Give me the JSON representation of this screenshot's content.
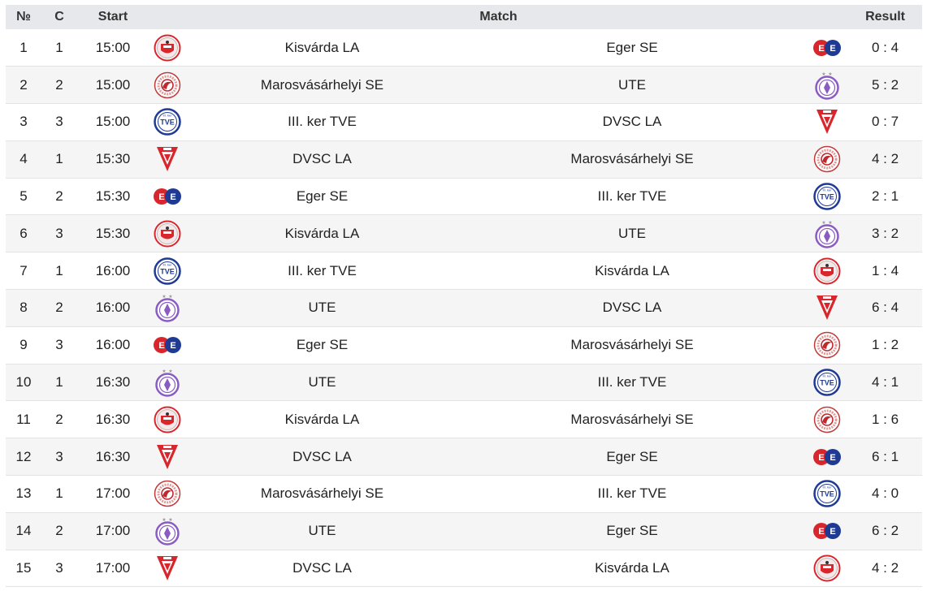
{
  "header": {
    "no": "№",
    "c": "C",
    "start": "Start",
    "match": "Match",
    "result": "Result"
  },
  "rows": [
    {
      "no": "1",
      "c": "1",
      "start": "15:00",
      "home": "Kisvárda LA",
      "home_logo": "kisvarda-logo",
      "away": "Eger SE",
      "away_logo": "eger-logo",
      "result": "0 : 4"
    },
    {
      "no": "2",
      "c": "2",
      "start": "15:00",
      "home": "Marosvásárhelyi SE",
      "home_logo": "maros-logo",
      "away": "UTE",
      "away_logo": "ute-logo",
      "result": "5 : 2"
    },
    {
      "no": "3",
      "c": "3",
      "start": "15:00",
      "home": "III. ker TVE",
      "home_logo": "tve-logo",
      "away": "DVSC LA",
      "away_logo": "dvsc-logo",
      "result": "0 : 7"
    },
    {
      "no": "4",
      "c": "1",
      "start": "15:30",
      "home": "DVSC LA",
      "home_logo": "dvsc-logo",
      "away": "Marosvásárhelyi SE",
      "away_logo": "maros-logo",
      "result": "4 : 2"
    },
    {
      "no": "5",
      "c": "2",
      "start": "15:30",
      "home": "Eger SE",
      "home_logo": "eger-logo",
      "away": "III. ker TVE",
      "away_logo": "tve-logo",
      "result": "2 : 1"
    },
    {
      "no": "6",
      "c": "3",
      "start": "15:30",
      "home": "Kisvárda LA",
      "home_logo": "kisvarda-logo",
      "away": "UTE",
      "away_logo": "ute-logo",
      "result": "3 : 2"
    },
    {
      "no": "7",
      "c": "1",
      "start": "16:00",
      "home": "III. ker TVE",
      "home_logo": "tve-logo",
      "away": "Kisvárda LA",
      "away_logo": "kisvarda-logo",
      "result": "1 : 4"
    },
    {
      "no": "8",
      "c": "2",
      "start": "16:00",
      "home": "UTE",
      "home_logo": "ute-logo",
      "away": "DVSC LA",
      "away_logo": "dvsc-logo",
      "result": "6 : 4"
    },
    {
      "no": "9",
      "c": "3",
      "start": "16:00",
      "home": "Eger SE",
      "home_logo": "eger-logo",
      "away": "Marosvásárhelyi SE",
      "away_logo": "maros-logo",
      "result": "1 : 2"
    },
    {
      "no": "10",
      "c": "1",
      "start": "16:30",
      "home": "UTE",
      "home_logo": "ute-logo",
      "away": "III. ker TVE",
      "away_logo": "tve-logo",
      "result": "4 : 1"
    },
    {
      "no": "11",
      "c": "2",
      "start": "16:30",
      "home": "Kisvárda LA",
      "home_logo": "kisvarda-logo",
      "away": "Marosvásárhelyi SE",
      "away_logo": "maros-logo",
      "result": "1 : 6"
    },
    {
      "no": "12",
      "c": "3",
      "start": "16:30",
      "home": "DVSC LA",
      "home_logo": "dvsc-logo",
      "away": "Eger SE",
      "away_logo": "eger-logo",
      "result": "6 : 1"
    },
    {
      "no": "13",
      "c": "1",
      "start": "17:00",
      "home": "Marosvásárhelyi SE",
      "home_logo": "maros-logo",
      "away": "III. ker TVE",
      "away_logo": "tve-logo",
      "result": "4 : 0"
    },
    {
      "no": "14",
      "c": "2",
      "start": "17:00",
      "home": "UTE",
      "home_logo": "ute-logo",
      "away": "Eger SE",
      "away_logo": "eger-logo",
      "result": "6 : 2"
    },
    {
      "no": "15",
      "c": "3",
      "start": "17:00",
      "home": "DVSC LA",
      "home_logo": "dvsc-logo",
      "away": "Kisvárda LA",
      "away_logo": "kisvarda-logo",
      "result": "4 : 2"
    }
  ],
  "colors": {
    "header_bg": "#e6e8ec",
    "stripe_bg": "#f5f5f5",
    "red": "#d9262c",
    "blue": "#1f3a93",
    "purple": "#8a5cc2"
  }
}
